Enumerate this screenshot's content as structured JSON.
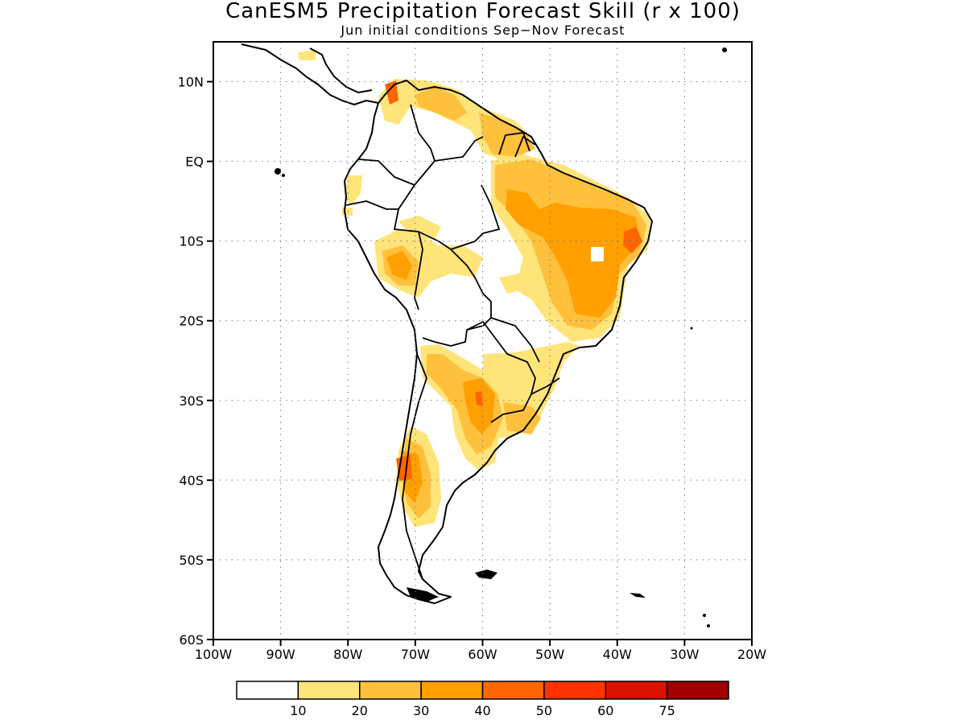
{
  "title": "CanESM5 Precipitation Forecast Skill (r x 100)",
  "subtitle": "Jun initial conditions  Sep−Nov Forecast",
  "map": {
    "region": "South America",
    "lon_range": [
      -100,
      -20
    ],
    "lat_range": [
      -60,
      15
    ],
    "lat_ticks": [
      "10N",
      "EQ",
      "10S",
      "20S",
      "30S",
      "40S",
      "50S",
      "60S"
    ],
    "lon_ticks": [
      "100W",
      "90W",
      "80W",
      "70W",
      "60W",
      "50W",
      "40W",
      "30W",
      "20W"
    ],
    "gridlines": "dotted"
  },
  "colorbar": {
    "colors": [
      "#ffffff",
      "#ffe47a",
      "#ffc03c",
      "#ff9f00",
      "#ff6600",
      "#ff3300",
      "#dd1100",
      "#a00000"
    ],
    "labels": [
      "10",
      "20",
      "30",
      "40",
      "50",
      "60",
      "75"
    ]
  }
}
